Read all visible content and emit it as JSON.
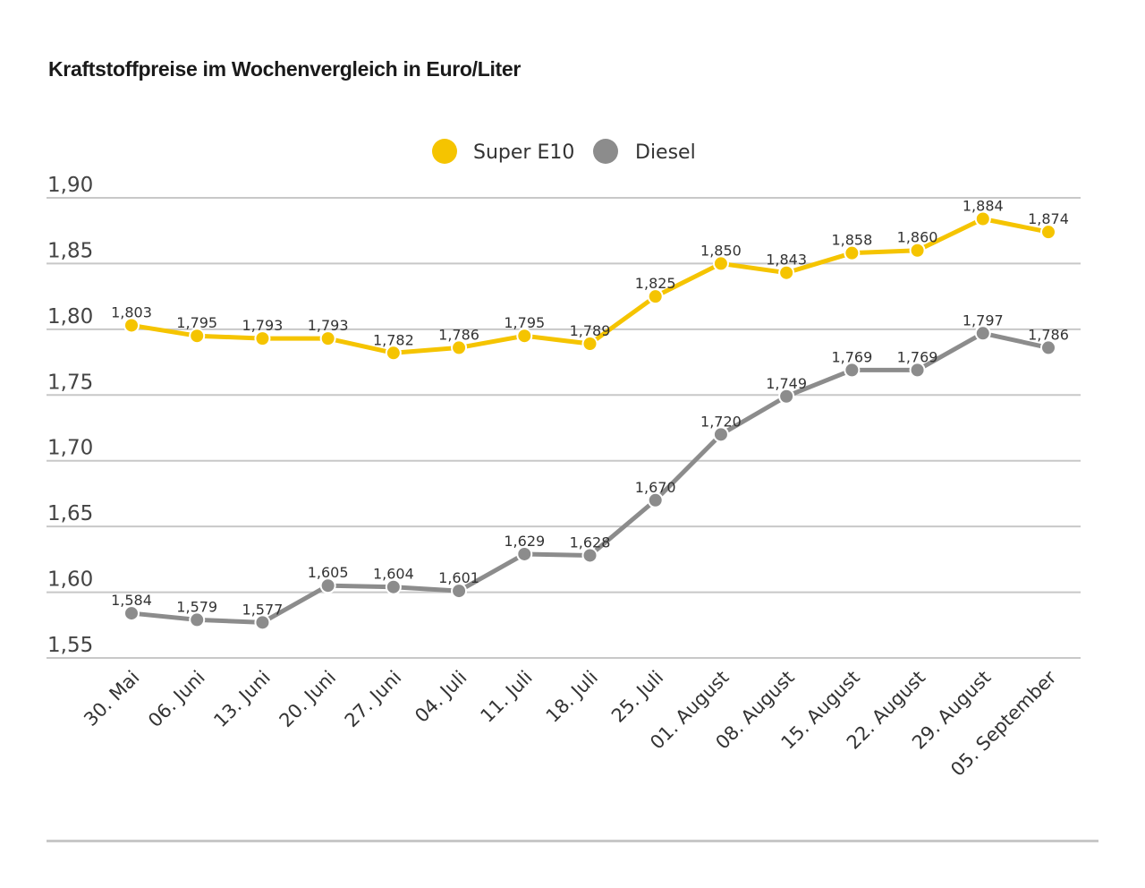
{
  "chart_data": {
    "type": "line",
    "title": "Kraftstoffpreise im Wochenvergleich in Euro/Liter",
    "xlabel": "",
    "ylabel": "",
    "ylim": [
      1.55,
      1.9
    ],
    "yticks": [
      1.55,
      1.6,
      1.65,
      1.7,
      1.75,
      1.8,
      1.85,
      1.9
    ],
    "ytick_labels": [
      "1,55",
      "1,60",
      "1,65",
      "1,70",
      "1,75",
      "1,80",
      "1,85",
      "1,90"
    ],
    "grid": true,
    "legend_position": "top-center",
    "categories": [
      "30. Mai",
      "06. Juni",
      "13. Juni",
      "20. Juni",
      "27. Juni",
      "04. Juli",
      "11. Juli",
      "18. Juli",
      "25. Juli",
      "01. August",
      "08. August",
      "15. August",
      "22. August",
      "29. August",
      "05. September"
    ],
    "series": [
      {
        "name": "Super E10",
        "color": "#f5c400",
        "values": [
          1.803,
          1.795,
          1.793,
          1.793,
          1.782,
          1.786,
          1.795,
          1.789,
          1.825,
          1.85,
          1.843,
          1.858,
          1.86,
          1.884,
          1.874
        ],
        "labels": [
          "1,803",
          "1,795",
          "1,793",
          "1,793",
          "1,782",
          "1,786",
          "1,795",
          "1,789",
          "1,825",
          "1,850",
          "1,843",
          "1,858",
          "1,860",
          "1,884",
          "1,874"
        ]
      },
      {
        "name": "Diesel",
        "color": "#8c8c8c",
        "values": [
          1.584,
          1.579,
          1.577,
          1.605,
          1.604,
          1.601,
          1.629,
          1.628,
          1.67,
          1.72,
          1.749,
          1.769,
          1.769,
          1.797,
          1.786
        ],
        "labels": [
          "1,584",
          "1,579",
          "1,577",
          "1,605",
          "1,604",
          "1,601",
          "1,629",
          "1,628",
          "1,670",
          "1,720",
          "1,749",
          "1,769",
          "1,769",
          "1,797",
          "1,786"
        ]
      }
    ]
  }
}
